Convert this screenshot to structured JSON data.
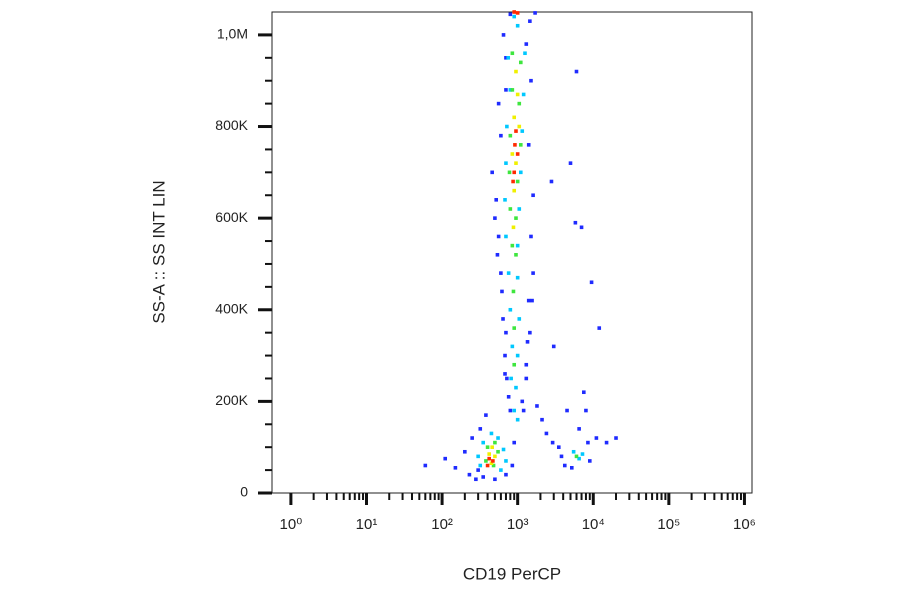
{
  "chart_data": {
    "type": "scatter",
    "x_label": "CD19 PerCP",
    "y_label": "SS-A :: SS INT LIN",
    "x_scale": "log",
    "xlim": [
      0.5623,
      1258925
    ],
    "xticks": [
      {
        "value": 1,
        "label": "10⁰"
      },
      {
        "value": 10,
        "label": "10¹"
      },
      {
        "value": 100,
        "label": "10²"
      },
      {
        "value": 1000,
        "label": "10³"
      },
      {
        "value": 10000,
        "label": "10⁴"
      },
      {
        "value": 100000,
        "label": "10⁵"
      },
      {
        "value": 1000000,
        "label": "10⁶"
      }
    ],
    "xminorticks": [
      2,
      3,
      4,
      5,
      6,
      7,
      8,
      9,
      20,
      30,
      40,
      50,
      60,
      70,
      80,
      90,
      200,
      300,
      400,
      500,
      600,
      700,
      800,
      900,
      2000,
      3000,
      4000,
      5000,
      6000,
      7000,
      8000,
      9000,
      20000,
      30000,
      40000,
      50000,
      60000,
      70000,
      80000,
      90000,
      200000,
      300000,
      400000,
      500000,
      600000,
      700000,
      800000,
      900000
    ],
    "ylim": [
      0,
      1050000
    ],
    "yticks": [
      0,
      {
        "value": 200000,
        "label": "200K"
      },
      {
        "value": 400000,
        "label": "400K"
      },
      {
        "value": 600000,
        "label": "600K"
      },
      {
        "value": 800000,
        "label": "800K"
      },
      {
        "value": 1000000,
        "label": "1,0M"
      }
    ],
    "yminorticks": [
      50000,
      100000,
      150000,
      250000,
      300000,
      350000,
      450000,
      500000,
      550000,
      650000,
      700000,
      750000,
      850000,
      900000,
      950000
    ],
    "series": [
      {
        "color": "#1f2bff",
        "x": [
          60,
          110,
          150,
          200,
          230,
          280,
          320,
          380,
          460,
          520,
          560,
          600,
          640,
          680,
          720,
          760,
          1150,
          1300,
          1450,
          1550,
          1800,
          2100,
          2400,
          2900,
          3500,
          5000,
          6000,
          5800,
          7000,
          8500,
          11000,
          15000,
          20000,
          650,
          700,
          1300,
          1500,
          560,
          600,
          1400,
          1600,
          500,
          540,
          1500,
          1600,
          620,
          1400,
          700,
          1350,
          680,
          1300,
          800,
          1200,
          250,
          300,
          700,
          850,
          900,
          350,
          500,
          3800,
          4200,
          5200,
          9000,
          6500,
          8000,
          4500,
          7500,
          3000,
          12000,
          9500,
          2800,
          700,
          1450,
          800,
          1700
        ],
        "y": [
          60000,
          75000,
          55000,
          90000,
          40000,
          30000,
          140000,
          170000,
          700000,
          640000,
          560000,
          480000,
          380000,
          300000,
          250000,
          210000,
          200000,
          280000,
          350000,
          420000,
          190000,
          160000,
          130000,
          110000,
          100000,
          720000,
          920000,
          590000,
          580000,
          110000,
          120000,
          110000,
          120000,
          1000000,
          950000,
          980000,
          900000,
          850000,
          780000,
          760000,
          650000,
          600000,
          520000,
          560000,
          480000,
          440000,
          420000,
          350000,
          330000,
          260000,
          250000,
          180000,
          180000,
          120000,
          50000,
          40000,
          60000,
          110000,
          35000,
          30000,
          80000,
          60000,
          55000,
          70000,
          140000,
          180000,
          180000,
          220000,
          320000,
          360000,
          460000,
          680000,
          880000,
          1030000,
          1045000,
          1048000
        ]
      },
      {
        "color": "#00c8ff",
        "x": [
          750,
          1250,
          800,
          1200,
          720,
          1150,
          700,
          1100,
          680,
          1050,
          700,
          1000,
          760,
          1000,
          800,
          1050,
          850,
          1000,
          820,
          950,
          900,
          1000,
          300,
          350,
          450,
          550,
          650,
          700,
          320,
          600,
          5500,
          6500,
          7200,
          1000,
          900
        ],
        "y": [
          950000,
          960000,
          880000,
          870000,
          800000,
          790000,
          720000,
          700000,
          640000,
          620000,
          560000,
          540000,
          480000,
          470000,
          400000,
          380000,
          320000,
          300000,
          250000,
          230000,
          180000,
          160000,
          80000,
          110000,
          130000,
          120000,
          95000,
          70000,
          60000,
          50000,
          90000,
          75000,
          85000,
          1020000,
          1040000
        ]
      },
      {
        "color": "#3ee63e",
        "x": [
          850,
          1100,
          850,
          1050,
          800,
          1100,
          780,
          1000,
          800,
          950,
          850,
          950,
          880,
          900,
          900,
          400,
          500,
          550,
          380,
          480,
          6000
        ],
        "y": [
          960000,
          940000,
          880000,
          850000,
          780000,
          760000,
          700000,
          680000,
          620000,
          600000,
          540000,
          520000,
          440000,
          360000,
          280000,
          100000,
          110000,
          90000,
          70000,
          60000,
          80000
        ]
      },
      {
        "color": "#f0f000",
        "x": [
          950,
          1000,
          900,
          1050,
          850,
          950,
          900,
          880,
          420,
          500,
          450,
          460
        ],
        "y": [
          920000,
          870000,
          820000,
          800000,
          740000,
          720000,
          660000,
          580000,
          85000,
          80000,
          65000,
          100000
        ]
      },
      {
        "color": "#ff2a00",
        "x": [
          950,
          920,
          1000,
          900,
          870,
          420,
          470,
          400,
          1000,
          900
        ],
        "y": [
          790000,
          760000,
          740000,
          700000,
          680000,
          75000,
          70000,
          60000,
          1048000,
          1050000
        ]
      }
    ]
  }
}
